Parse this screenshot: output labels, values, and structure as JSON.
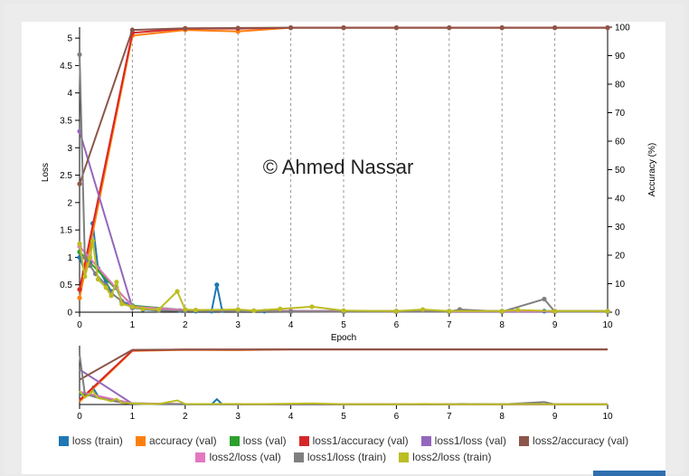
{
  "watermark": "© Ahmed Nassar",
  "colors": {
    "loss_train": "#1f77b4",
    "accuracy_val": "#ff7f0e",
    "loss_val": "#2ca02c",
    "loss1_accuracy_val": "#d62728",
    "loss1_loss_val": "#9467bd",
    "loss2_accuracy_val": "#8c564b",
    "loss2_loss_val": "#e377c2",
    "loss1_loss_train": "#7f7f7f",
    "loss2_loss_train": "#bcbd22"
  },
  "chart_data": {
    "type": "line",
    "xlabel": "Epoch",
    "ylabel_left": "Loss",
    "ylabel_right": "Accuracy (%)",
    "xlim": [
      0,
      10
    ],
    "ylim_left": [
      0,
      5.2
    ],
    "ylim_right": [
      0,
      100
    ],
    "x_ticks": [
      "0",
      "1",
      "2",
      "3",
      "4",
      "5",
      "6",
      "7",
      "8",
      "9",
      "10"
    ],
    "y_left_ticks": [
      "0",
      "0.5",
      "1",
      "1.5",
      "2",
      "2.5",
      "3",
      "3.5",
      "4",
      "4.5",
      "5"
    ],
    "y_right_ticks": [
      "0",
      "10",
      "20",
      "30",
      "40",
      "50",
      "60",
      "70",
      "80",
      "90",
      "100"
    ],
    "vertical_gridlines": true,
    "legend_placement": "bottom",
    "series": [
      {
        "name": "loss (train)",
        "axis": "left",
        "key": "loss_train",
        "x": [
          0,
          0.1,
          0.2,
          0.25,
          0.35,
          0.5,
          0.6,
          0.7,
          0.8,
          1.0,
          1.2,
          1.5,
          1.9,
          2.2,
          2.5,
          2.6,
          2.7,
          3.0,
          3.5,
          4.0,
          5.0,
          6.0,
          7.0,
          8.0,
          8.8,
          9.0,
          10.0
        ],
        "y": [
          1.0,
          0.75,
          0.9,
          1.62,
          0.8,
          0.55,
          0.38,
          0.45,
          0.2,
          0.12,
          0.05,
          0.03,
          0.03,
          0.02,
          0.02,
          0.5,
          0.03,
          0.02,
          0.02,
          0.02,
          0.02,
          0.02,
          0.02,
          0.02,
          0.02,
          0.02,
          0.02
        ]
      },
      {
        "name": "accuracy (val)",
        "axis": "right",
        "key": "accuracy_val",
        "x": [
          0,
          1,
          2,
          3,
          4,
          5,
          6,
          7,
          8,
          9,
          10
        ],
        "y": [
          5,
          97,
          99,
          98.5,
          99.8,
          99.8,
          99.8,
          99.8,
          99.8,
          99.8,
          99.8
        ]
      },
      {
        "name": "loss (val)",
        "axis": "left",
        "key": "loss_val",
        "x": [
          0,
          1,
          2,
          3,
          4,
          5,
          6,
          7,
          8,
          9,
          10
        ],
        "y": [
          1.1,
          0.12,
          0.04,
          0.03,
          0.02,
          0.02,
          0.02,
          0.02,
          0.02,
          0.02,
          0.02
        ]
      },
      {
        "name": "loss1/accuracy (val)",
        "axis": "right",
        "key": "loss1_accuracy_val",
        "x": [
          0,
          1,
          2,
          3,
          4,
          5,
          6,
          7,
          8,
          9,
          10
        ],
        "y": [
          8,
          98,
          99.5,
          99.5,
          99.8,
          99.8,
          99.8,
          99.8,
          99.8,
          99.8,
          99.8
        ]
      },
      {
        "name": "loss1/loss (val)",
        "axis": "left",
        "key": "loss1_loss_val",
        "x": [
          0,
          1,
          2,
          3,
          4,
          5,
          6,
          7,
          8,
          9,
          10
        ],
        "y": [
          3.3,
          0.08,
          0.03,
          0.02,
          0.02,
          0.01,
          0.01,
          0.01,
          0.01,
          0.01,
          0.01
        ]
      },
      {
        "name": "loss2/accuracy (val)",
        "axis": "right",
        "key": "loss2_accuracy_val",
        "x": [
          0,
          1,
          2,
          3,
          4,
          5,
          6,
          7,
          8,
          9,
          10
        ],
        "y": [
          45,
          99,
          99.6,
          99.7,
          99.8,
          99.8,
          99.8,
          99.8,
          99.8,
          99.8,
          99.8
        ]
      },
      {
        "name": "loss2/loss (val)",
        "axis": "left",
        "key": "loss2_loss_val",
        "x": [
          0,
          1,
          2,
          3,
          4,
          5,
          6,
          7,
          8,
          9,
          10
        ],
        "y": [
          1.2,
          0.1,
          0.04,
          0.03,
          0.02,
          0.02,
          0.02,
          0.02,
          0.02,
          0.02,
          0.02
        ]
      },
      {
        "name": "loss1/loss (train)",
        "axis": "left",
        "key": "loss1_loss_train",
        "x": [
          0,
          0.1,
          0.2,
          0.3,
          0.5,
          0.6,
          0.8,
          1.0,
          1.5,
          2.0,
          3.0,
          4.0,
          5.0,
          6.0,
          7.0,
          7.2,
          8.0,
          8.8,
          9.0,
          10.0
        ],
        "y": [
          4.7,
          1.0,
          0.85,
          0.7,
          0.5,
          0.35,
          0.2,
          0.08,
          0.03,
          0.02,
          0.02,
          0.01,
          0.01,
          0.01,
          0.01,
          0.05,
          0.01,
          0.24,
          0.01,
          0.01
        ]
      },
      {
        "name": "loss2/loss (train)",
        "axis": "left",
        "key": "loss2_loss_train",
        "x": [
          0,
          0.1,
          0.2,
          0.25,
          0.35,
          0.5,
          0.6,
          0.7,
          0.8,
          1.0,
          1.2,
          1.5,
          1.85,
          2.0,
          2.2,
          3.0,
          3.3,
          3.8,
          4.4,
          5.0,
          6.0,
          6.5,
          7.0,
          8.0,
          8.3,
          9.0,
          10.0
        ],
        "y": [
          1.25,
          0.65,
          1.0,
          1.3,
          0.6,
          0.45,
          0.3,
          0.55,
          0.15,
          0.1,
          0.06,
          0.05,
          0.38,
          0.05,
          0.04,
          0.05,
          0.03,
          0.06,
          0.1,
          0.03,
          0.02,
          0.05,
          0.02,
          0.02,
          0.04,
          0.02,
          0.02
        ]
      }
    ],
    "overview": {
      "xlim": [
        0,
        10
      ],
      "x_ticks": [
        "0",
        "1",
        "2",
        "3",
        "4",
        "5",
        "6",
        "7",
        "8",
        "9",
        "10"
      ]
    }
  },
  "legend": {
    "row1": [
      {
        "key": "loss_train",
        "label": "loss (train)"
      },
      {
        "key": "accuracy_val",
        "label": "accuracy (val)"
      },
      {
        "key": "loss_val",
        "label": "loss (val)"
      },
      {
        "key": "loss1_accuracy_val",
        "label": "loss1/accuracy (val)"
      },
      {
        "key": "loss1_loss_val",
        "label": "loss1/loss (val)"
      },
      {
        "key": "loss2_accuracy_val",
        "label": "loss2/accuracy (val)"
      }
    ],
    "row2": [
      {
        "key": "loss2_loss_val",
        "label": "loss2/loss (val)"
      },
      {
        "key": "loss1_loss_train",
        "label": "loss1/loss (train)"
      },
      {
        "key": "loss2_loss_train",
        "label": "loss2/loss (train)"
      }
    ]
  }
}
